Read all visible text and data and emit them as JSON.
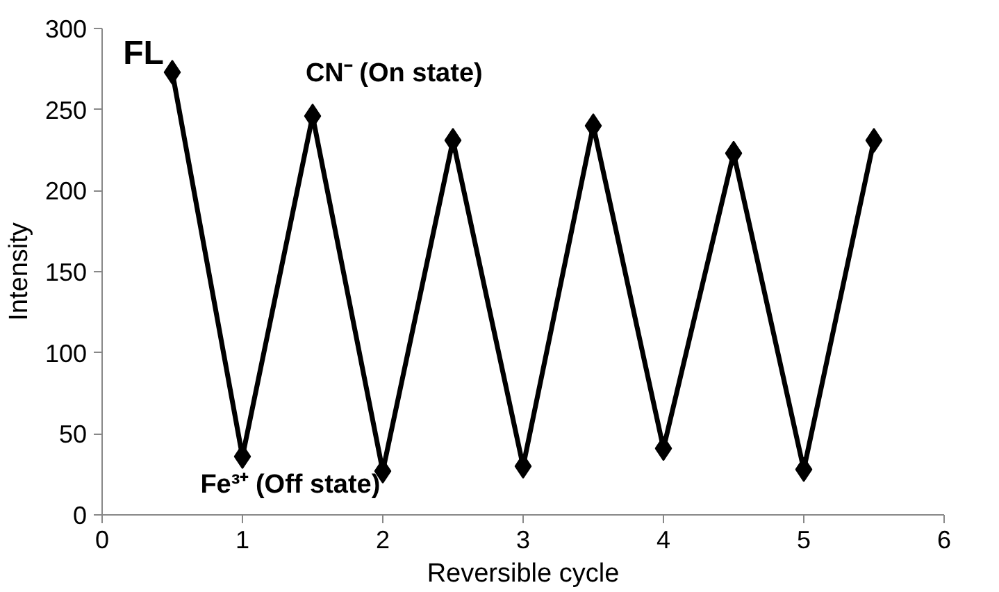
{
  "chart_data": {
    "type": "line",
    "xlabel": "Reversible cycle",
    "ylabel": "Intensity",
    "x": [
      0.5,
      1,
      1.5,
      2,
      2.5,
      3,
      3.5,
      4,
      4.5,
      5,
      5.5
    ],
    "series": [
      {
        "color": "#000000",
        "values": [
          273,
          36,
          246,
          27,
          231,
          30,
          240,
          41,
          223,
          28,
          231
        ]
      }
    ],
    "xlim": [
      0,
      6
    ],
    "ylim": [
      0,
      300
    ],
    "xticks": [
      0,
      1,
      2,
      3,
      4,
      5,
      6
    ],
    "yticks": [
      0,
      50,
      100,
      150,
      200,
      250,
      300
    ],
    "grid": false,
    "marker": "diamond",
    "line_style": "solid",
    "annotations": [
      {
        "text": "FL",
        "x": 0.5,
        "y": 273
      },
      {
        "text": "CN⁻ (On state)",
        "x": 1.5,
        "y": 246
      },
      {
        "text": "Fe³⁺ (Off state)",
        "x": 1,
        "y": 36
      }
    ]
  }
}
